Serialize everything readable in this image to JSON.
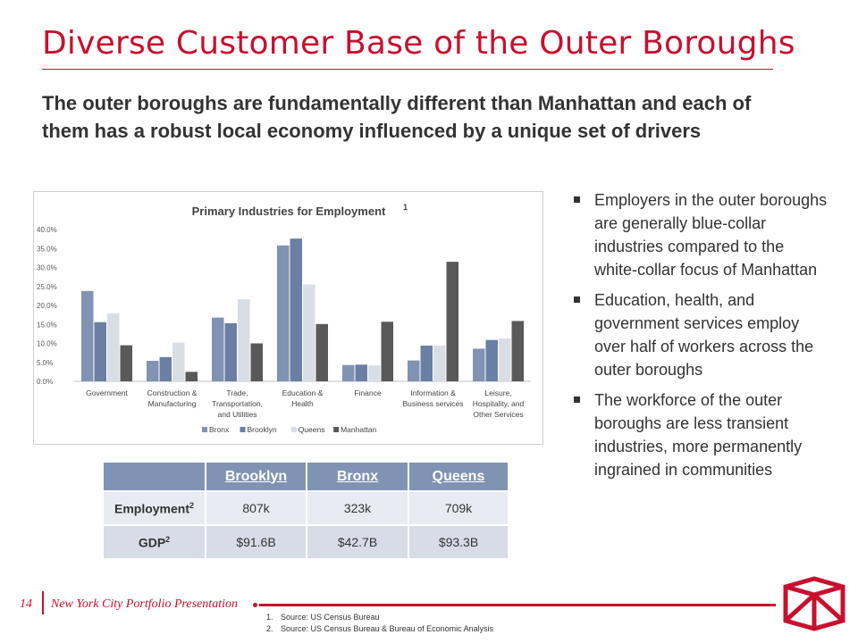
{
  "slide": {
    "title": "Diverse Customer Base of the Outer Boroughs",
    "subtitle": "The outer boroughs are fundamentally different than Manhattan and each of them has a robust local economy influenced by a unique set of drivers"
  },
  "chart_data": {
    "type": "bar",
    "title": "Primary Industries for Employment",
    "title_sup": "1",
    "categories": [
      [
        "Government"
      ],
      [
        "Construction &",
        "Manufacturing"
      ],
      [
        "Trade,",
        "Transportation,",
        "and Utilities"
      ],
      [
        "Education &",
        "Health"
      ],
      [
        "Finance"
      ],
      [
        "Information &",
        "Business services"
      ],
      [
        "Leisure,",
        "Hospitality, and",
        "Other Services"
      ]
    ],
    "series": [
      {
        "name": "Bronx",
        "color": "#8093b3",
        "values": [
          23.8,
          5.4,
          16.8,
          35.8,
          4.3,
          5.5,
          8.6
        ]
      },
      {
        "name": "Brooklyn",
        "color": "#6a7fa3",
        "values": [
          15.6,
          6.4,
          15.3,
          37.6,
          4.4,
          9.4,
          10.9
        ]
      },
      {
        "name": "Queens",
        "color": "#d9dde6",
        "values": [
          17.9,
          10.2,
          21.6,
          25.5,
          4.2,
          9.4,
          11.3
        ]
      },
      {
        "name": "Manhattan",
        "color": "#595959",
        "values": [
          9.5,
          2.5,
          10.0,
          15.1,
          15.7,
          31.5,
          15.9
        ]
      }
    ],
    "ylim": [
      0,
      40
    ],
    "yticks": [
      "0.0%",
      "5.0%",
      "10.0%",
      "15.0%",
      "20.0%",
      "25.0%",
      "30.0%",
      "35.0%",
      "40.0%"
    ],
    "grid": false,
    "legend": "bottom"
  },
  "bullets": [
    "Employers in the outer boroughs are generally blue-collar industries compared to the white-collar focus of Manhattan",
    "Education, health, and government services employ over half of workers across the outer boroughs",
    "The workforce of the outer boroughs are less transient industries, more permanently ingrained in communities"
  ],
  "table": {
    "headers": [
      "Brooklyn",
      "Bronx",
      "Queens"
    ],
    "rows": [
      {
        "label": "Employment",
        "sup": "2",
        "values": [
          "807k",
          "323k",
          "709k"
        ]
      },
      {
        "label": "GDP",
        "sup": "2",
        "values": [
          "$91.6B",
          "$42.7B",
          "$93.3B"
        ]
      }
    ]
  },
  "footer": {
    "page_number": "14",
    "deck_name": "New York City Portfolio Presentation",
    "footnotes": [
      {
        "num": "1.",
        "text": "Source: US Census Bureau"
      },
      {
        "num": "2.",
        "text": "Source: US Census Bureau & Bureau of Economic Analysis"
      }
    ]
  }
}
